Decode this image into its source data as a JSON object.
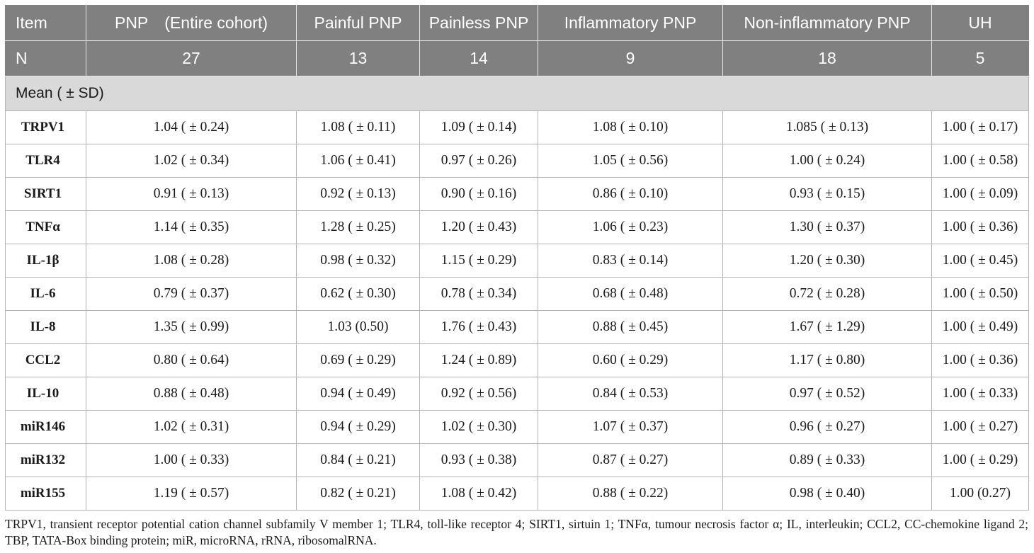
{
  "colors": {
    "header_background": "#808080",
    "header_text": "#ffffff",
    "header_divider": "#e6e6e6",
    "section_background": "#d9d9d9",
    "grid_line": "#b3b3b3",
    "text": "#1a1a1a"
  },
  "table": {
    "columns": [
      "Item",
      "PNP (Entire cohort)",
      "Painful PNP",
      "Painless PNP",
      "Inflammatory PNP",
      "Non-inflammatory PNP",
      "UH"
    ],
    "sample_size": {
      "label": "N",
      "values": [
        27,
        13,
        14,
        9,
        18,
        5
      ]
    },
    "section_label": "Mean ( ± SD)",
    "rows": [
      {
        "label": "TRPV1",
        "values": [
          "1.04 ( ± 0.24)",
          "1.08 ( ± 0.11)",
          "1.09 ( ± 0.14)",
          "1.08 ( ± 0.10)",
          "1.085 ( ± 0.13)",
          "1.00 ( ± 0.17)"
        ]
      },
      {
        "label": "TLR4",
        "values": [
          "1.02 ( ± 0.34)",
          "1.06 ( ± 0.41)",
          "0.97 ( ± 0.26)",
          "1.05 ( ± 0.56)",
          "1.00 ( ± 0.24)",
          "1.00 ( ± 0.58)"
        ]
      },
      {
        "label": "SIRT1",
        "values": [
          "0.91 ( ± 0.13)",
          "0.92 ( ± 0.13)",
          "0.90 ( ± 0.16)",
          "0.86 ( ± 0.10)",
          "0.93 ( ± 0.15)",
          "1.00 ( ± 0.09)"
        ]
      },
      {
        "label": "TNFα",
        "values": [
          "1.14 ( ± 0.35)",
          "1.28 ( ± 0.25)",
          "1.20 ( ± 0.43)",
          "1.06 ( ± 0.23)",
          "1.30 ( ± 0.37)",
          "1.00 ( ± 0.36)"
        ]
      },
      {
        "label": "IL-1β",
        "values": [
          "1.08 ( ± 0.28)",
          "0.98 ( ± 0.32)",
          "1.15 ( ± 0.29)",
          "0.83 ( ± 0.14)",
          "1.20 ( ± 0.30)",
          "1.00 ( ± 0.45)"
        ]
      },
      {
        "label": "IL-6",
        "values": [
          "0.79 ( ± 0.37)",
          "0.62 ( ± 0.30)",
          "0.78 ( ± 0.34)",
          "0.68 ( ± 0.48)",
          "0.72 ( ± 0.28)",
          "1.00 ( ± 0.50)"
        ]
      },
      {
        "label": "IL-8",
        "values": [
          "1.35 ( ± 0.99)",
          "1.03 (0.50)",
          "1.76 ( ± 0.43)",
          "0.88 ( ± 0.45)",
          "1.67 ( ± 1.29)",
          "1.00 ( ± 0.49)"
        ]
      },
      {
        "label": "CCL2",
        "values": [
          "0.80 ( ± 0.64)",
          "0.69 ( ± 0.29)",
          "1.24 ( ± 0.89)",
          "0.60 ( ± 0.29)",
          "1.17 ( ± 0.80)",
          "1.00 ( ± 0.36)"
        ]
      },
      {
        "label": "IL-10",
        "values": [
          "0.88 ( ± 0.48)",
          "0.94 ( ± 0.49)",
          "0.92 ( ± 0.56)",
          "0.84 ( ± 0.53)",
          "0.97 ( ± 0.52)",
          "1.00 ( ± 0.33)"
        ]
      },
      {
        "label": "miR146",
        "values": [
          "1.02 ( ± 0.31)",
          "0.94 ( ± 0.29)",
          "1.02 ( ± 0.30)",
          "1.07 ( ± 0.37)",
          "0.96 ( ± 0.27)",
          "1.00 ( ± 0.27)"
        ]
      },
      {
        "label": "miR132",
        "values": [
          "1.00 ( ± 0.33)",
          "0.84 ( ± 0.21)",
          "0.93 ( ± 0.38)",
          "0.87 ( ± 0.27)",
          "0.89 ( ± 0.33)",
          "1.00 ( ± 0.29)"
        ]
      },
      {
        "label": "miR155",
        "values": [
          "1.19 ( ± 0.57)",
          "0.82 ( ± 0.21)",
          "1.08 ( ± 0.42)",
          "0.88 ( ± 0.22)",
          "0.98 ( ± 0.40)",
          "1.00 (0.27)"
        ]
      }
    ]
  },
  "footnote": [
    "TRPV1, transient receptor potential cation channel subfamily V member 1; TLR4, toll-like receptor 4; SIRT1, sirtuin 1; TNFα, tumour necrosis factor α; IL, interleukin; CCL2, CC-chemokine ligand 2;",
    "TBP, TATA-Box binding protein; miR, microRNA, rRNA, ribosomalRNA."
  ]
}
